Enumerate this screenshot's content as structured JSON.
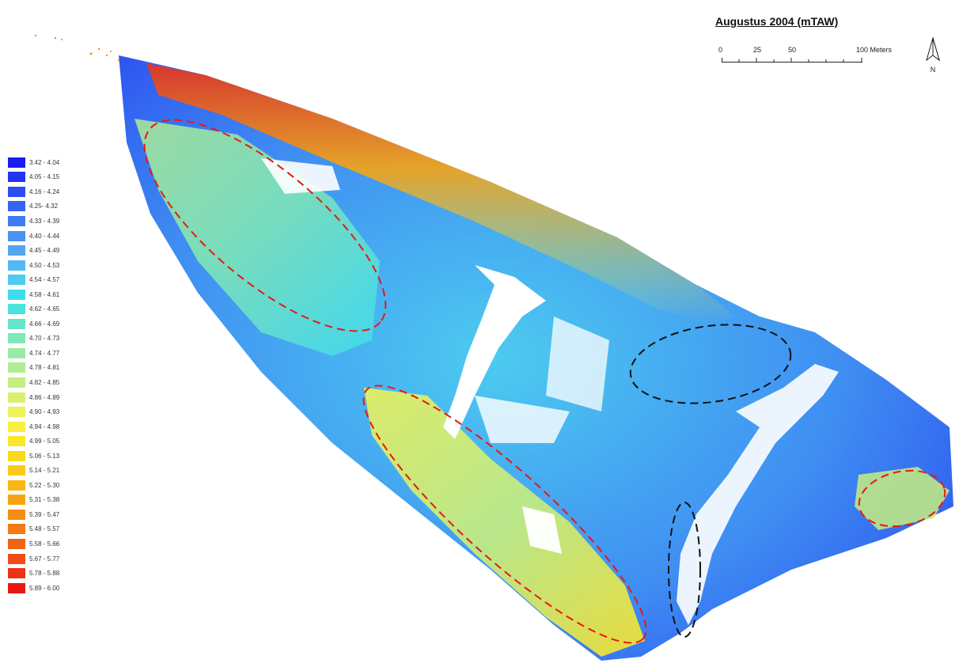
{
  "map": {
    "title": "Augustus 2004 (mTAW)",
    "scale_bar": {
      "labels": [
        "0",
        "25",
        "50",
        "100 Meters"
      ]
    },
    "north_arrow": "N",
    "legend": [
      {
        "label": "3.42 - 4.04",
        "color": "#1c1cf0"
      },
      {
        "label": "4.05 - 4.15",
        "color": "#2334f0"
      },
      {
        "label": "4.16 - 4.24",
        "color": "#2c4ef0"
      },
      {
        "label": "4.25- 4.32",
        "color": "#3565f2"
      },
      {
        "label": "4.33 - 4.39",
        "color": "#3f7cf2"
      },
      {
        "label": "4.40 - 4.44",
        "color": "#4a92f3"
      },
      {
        "label": "4.45 - 4.49",
        "color": "#53a6f3"
      },
      {
        "label": "4.50 - 4.53",
        "color": "#54b9f2"
      },
      {
        "label": "4.54 - 4.57",
        "color": "#4dcbf0"
      },
      {
        "label": "4.58 - 4.61",
        "color": "#40dcee"
      },
      {
        "label": "4.62 - 4.65",
        "color": "#4ae3db"
      },
      {
        "label": "4.66 - 4.69",
        "color": "#66e6c8"
      },
      {
        "label": "4.70 - 4.73",
        "color": "#7fe8b6"
      },
      {
        "label": "4.74 - 4.77",
        "color": "#98eaa4"
      },
      {
        "label": "4.78 - 4.81",
        "color": "#b0ec92"
      },
      {
        "label": "4.82 - 4.85",
        "color": "#c6ee80"
      },
      {
        "label": "4.86 - 4.89",
        "color": "#dbf06e"
      },
      {
        "label": "4.90 - 4.93",
        "color": "#edf15a"
      },
      {
        "label": "4.94 - 4.98",
        "color": "#f9ee42"
      },
      {
        "label": "4.99 - 5.05",
        "color": "#fbe62a"
      },
      {
        "label": "5.06 - 5.13",
        "color": "#fbd91c"
      },
      {
        "label": "5.14 - 5.21",
        "color": "#fbc918"
      },
      {
        "label": "5.22 - 5.30",
        "color": "#f9b714"
      },
      {
        "label": "5.31 - 5.38",
        "color": "#f7a412"
      },
      {
        "label": "5.39 - 5.47",
        "color": "#f58f12"
      },
      {
        "label": "5.48 - 5.57",
        "color": "#f37a14"
      },
      {
        "label": "5.58 - 5.66",
        "color": "#f16414"
      },
      {
        "label": "5.67 - 5.77",
        "color": "#ee4e14"
      },
      {
        "label": "5.78 - 5.88",
        "color": "#ec3414"
      },
      {
        "label": "5.89 - 6.00",
        "color": "#e81812"
      }
    ]
  }
}
